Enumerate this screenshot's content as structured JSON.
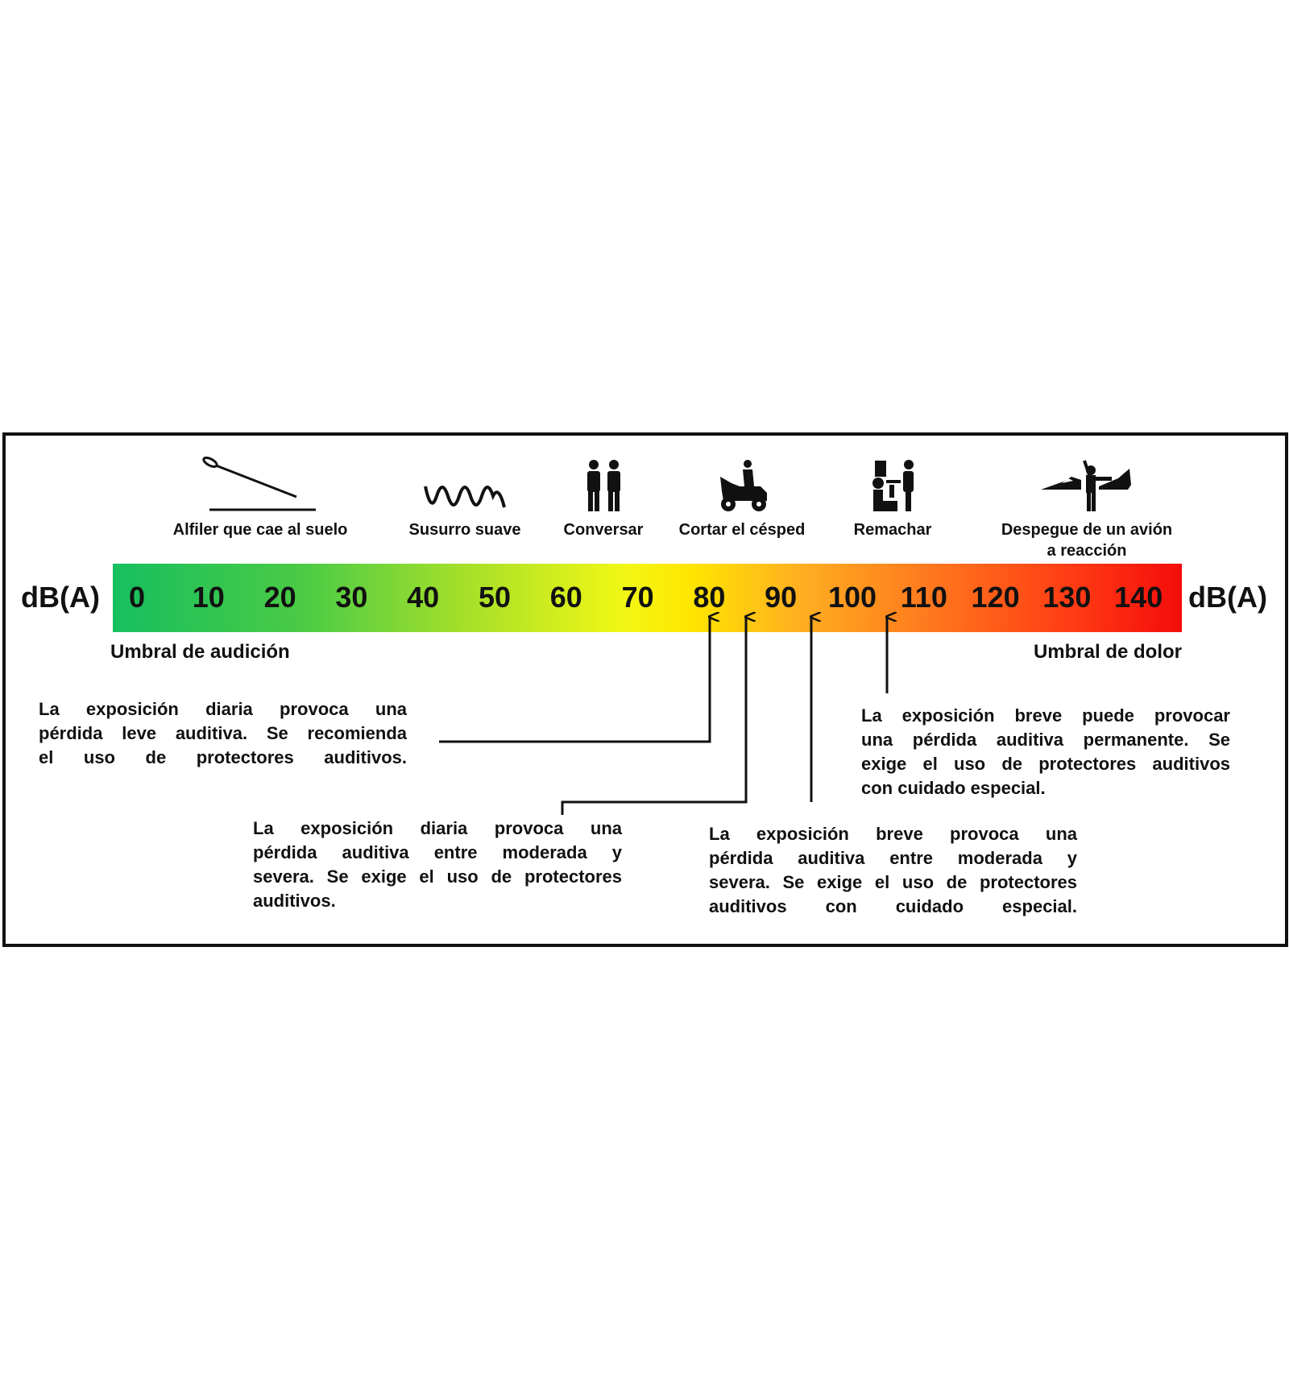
{
  "scale": {
    "unit_label": "dB(A)",
    "ticks": [
      "0",
      "10",
      "20",
      "30",
      "40",
      "50",
      "60",
      "70",
      "80",
      "90",
      "100",
      "110",
      "120",
      "130",
      "140"
    ],
    "threshold_left": "Umbral de audición",
    "threshold_right": "Umbral de dolor",
    "gradient_colors": [
      "#16bf5f",
      "#a6e02a",
      "#ffe600",
      "#ff7a1e",
      "#f40c0c"
    ]
  },
  "activities": [
    {
      "icon": "pin-drop-icon",
      "label": "Alfiler que cae al suelo"
    },
    {
      "icon": "whisper-wave-icon",
      "label": "Susurro suave"
    },
    {
      "icon": "two-people-icon",
      "label": "Conversar"
    },
    {
      "icon": "lawn-mower-icon",
      "label": "Cortar el césped"
    },
    {
      "icon": "riveting-worker-icon",
      "label": "Remachar"
    },
    {
      "icon": "jet-takeoff-icon",
      "label": "Despegue de un avión",
      "label2": "a reacción"
    }
  ],
  "notes": [
    {
      "arrow_db": 80,
      "lines": [
        "La exposición diaria provoca una",
        "pérdida leve auditiva. Se recomienda",
        "el uso de protectores auditivos."
      ]
    },
    {
      "arrow_db": 85,
      "lines": [
        "La exposición diaria provoca una",
        "pérdida auditiva entre moderada y",
        "severa. Se exige el uso de protectores",
        "auditivos."
      ]
    },
    {
      "arrow_db": 94,
      "lines": [
        "La exposición breve provoca una",
        "pérdida auditiva entre moderada y",
        "severa. Se exige el uso de protectores",
        "auditivos con cuidado especial."
      ]
    },
    {
      "arrow_db": 105,
      "lines": [
        "La exposición breve puede provocar",
        "una pérdida auditiva permanente. Se",
        "exige el uso de protectores auditivos",
        "con cuidado especial."
      ]
    }
  ]
}
